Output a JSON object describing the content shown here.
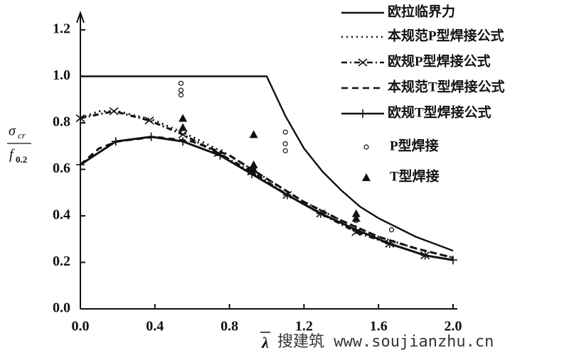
{
  "chart_data": {
    "type": "line",
    "x_label": "λ",
    "y_label": {
      "numerator": {
        "symbol": "σ",
        "sub": "cr"
      },
      "denominator": {
        "symbol": "f",
        "sub": "0.2"
      }
    },
    "watermark": "搜建筑 www.soujianzhu.cn",
    "xlim": [
      0,
      2.0
    ],
    "ylim": [
      0,
      1.2
    ],
    "xticks": [
      {
        "value": 0,
        "label": "0.0"
      },
      0.4,
      0.8,
      1.2,
      1.6,
      {
        "value": 2.0,
        "label": "2.0"
      }
    ],
    "yticks": [
      {
        "value": 0,
        "label": "0.0"
      },
      0.2,
      0.4,
      0.6,
      0.8,
      {
        "value": 1.0,
        "label": "1.0"
      },
      1.2
    ],
    "legend": "top-right",
    "series": [
      {
        "name": "欧拉临界力",
        "color": "#111111",
        "line": "solid",
        "marker": "none",
        "x": [
          0,
          0.2,
          0.4,
          0.6,
          0.8,
          1.0,
          1.1,
          1.2,
          1.3,
          1.4,
          1.5,
          1.6,
          1.7,
          1.8,
          1.9,
          2.0
        ],
        "values": [
          1.0,
          1.0,
          1.0,
          1.0,
          1.0,
          1.0,
          0.83,
          0.69,
          0.59,
          0.51,
          0.44,
          0.39,
          0.35,
          0.31,
          0.28,
          0.25
        ]
      },
      {
        "name": "本规范P型焊接公式",
        "color": "#111111",
        "line": "dotted",
        "marker": "none",
        "x": [
          0,
          0.1,
          0.2,
          0.4,
          0.6,
          0.8,
          1.0,
          1.2,
          1.4,
          1.6,
          1.8,
          2.0
        ],
        "values": [
          0.82,
          0.85,
          0.85,
          0.81,
          0.74,
          0.66,
          0.56,
          0.46,
          0.38,
          0.31,
          0.26,
          0.22
        ]
      },
      {
        "name": "欧规P型焊接公式",
        "color": "#111111",
        "line": "dashdot",
        "marker": "x",
        "x": [
          0,
          0.18,
          0.37,
          0.55,
          0.74,
          0.92,
          1.11,
          1.29,
          1.48,
          1.66,
          1.85
        ],
        "values": [
          0.82,
          0.85,
          0.81,
          0.75,
          0.67,
          0.59,
          0.49,
          0.41,
          0.33,
          0.28,
          0.23
        ]
      },
      {
        "name": "本规范T型焊接公式",
        "color": "#111111",
        "line": "dashed",
        "marker": "none",
        "x": [
          0,
          0.1,
          0.2,
          0.4,
          0.6,
          0.8,
          1.0,
          1.2,
          1.4,
          1.6,
          1.8,
          2.0
        ],
        "values": [
          0.62,
          0.69,
          0.72,
          0.74,
          0.72,
          0.66,
          0.56,
          0.46,
          0.38,
          0.31,
          0.26,
          0.22
        ]
      },
      {
        "name": "欧规T型焊接公式",
        "color": "#111111",
        "line": "solid",
        "marker": "+",
        "x": [
          0,
          0.19,
          0.38,
          0.55,
          0.75,
          0.92,
          1.11,
          1.29,
          1.48,
          1.66,
          1.85,
          2.0
        ],
        "values": [
          0.62,
          0.72,
          0.74,
          0.72,
          0.66,
          0.58,
          0.49,
          0.41,
          0.34,
          0.28,
          0.23,
          0.21
        ]
      },
      {
        "name": "P型焊接",
        "color": "#111111",
        "line": "none",
        "marker": "circle",
        "x": [
          0.54,
          0.54,
          0.54,
          1.1,
          1.1,
          1.1,
          0.93,
          1.48,
          1.67
        ],
        "values": [
          0.97,
          0.94,
          0.92,
          0.76,
          0.71,
          0.68,
          0.61,
          0.38,
          0.34
        ]
      },
      {
        "name": "T型焊接",
        "color": "#111111",
        "line": "none",
        "marker": "triangle",
        "x": [
          0.55,
          0.55,
          0.93,
          0.93,
          0.93,
          1.48,
          1.48
        ],
        "values": [
          0.82,
          0.78,
          0.75,
          0.62,
          0.6,
          0.41,
          0.39
        ]
      }
    ]
  }
}
